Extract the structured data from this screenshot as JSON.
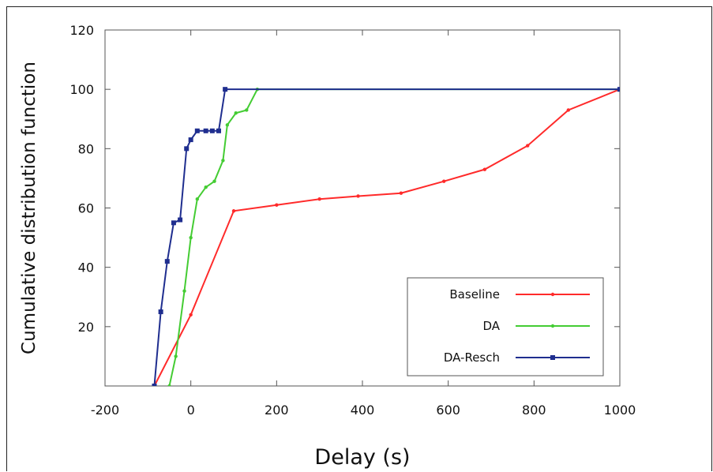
{
  "chart_data": {
    "type": "line",
    "xlabel": "Delay (s)",
    "ylabel": "Cumulative distribution function",
    "xlim": [
      -200,
      1000
    ],
    "ylim": [
      0,
      120
    ],
    "xticks": [
      -200,
      0,
      200,
      400,
      600,
      800,
      1000
    ],
    "yticks": [
      20,
      40,
      60,
      80,
      100,
      120
    ],
    "grid": false,
    "legend_position": "bottom-right",
    "series": [
      {
        "name": "Baseline",
        "color": "#ff2a2a",
        "x": [
          -85,
          0,
          100,
          200,
          300,
          390,
          490,
          590,
          685,
          785,
          880,
          1000
        ],
        "y": [
          0,
          24,
          59,
          61,
          63,
          64,
          65,
          69,
          73,
          81,
          93,
          100
        ]
      },
      {
        "name": "DA",
        "color": "#44cc33",
        "x": [
          -50,
          -35,
          -15,
          0,
          15,
          35,
          55,
          75,
          85,
          105,
          130,
          155,
          1000
        ],
        "y": [
          0,
          10,
          32,
          50,
          63,
          67,
          69,
          76,
          88,
          92,
          93,
          100,
          100
        ]
      },
      {
        "name": "DA-Resch",
        "color": "#1f2e8f",
        "x": [
          -85,
          -70,
          -55,
          -40,
          -25,
          -10,
          0,
          15,
          35,
          50,
          65,
          80,
          1000
        ],
        "y": [
          0,
          25,
          42,
          55,
          56,
          80,
          83,
          86,
          86,
          86,
          86,
          100,
          100
        ]
      }
    ]
  }
}
